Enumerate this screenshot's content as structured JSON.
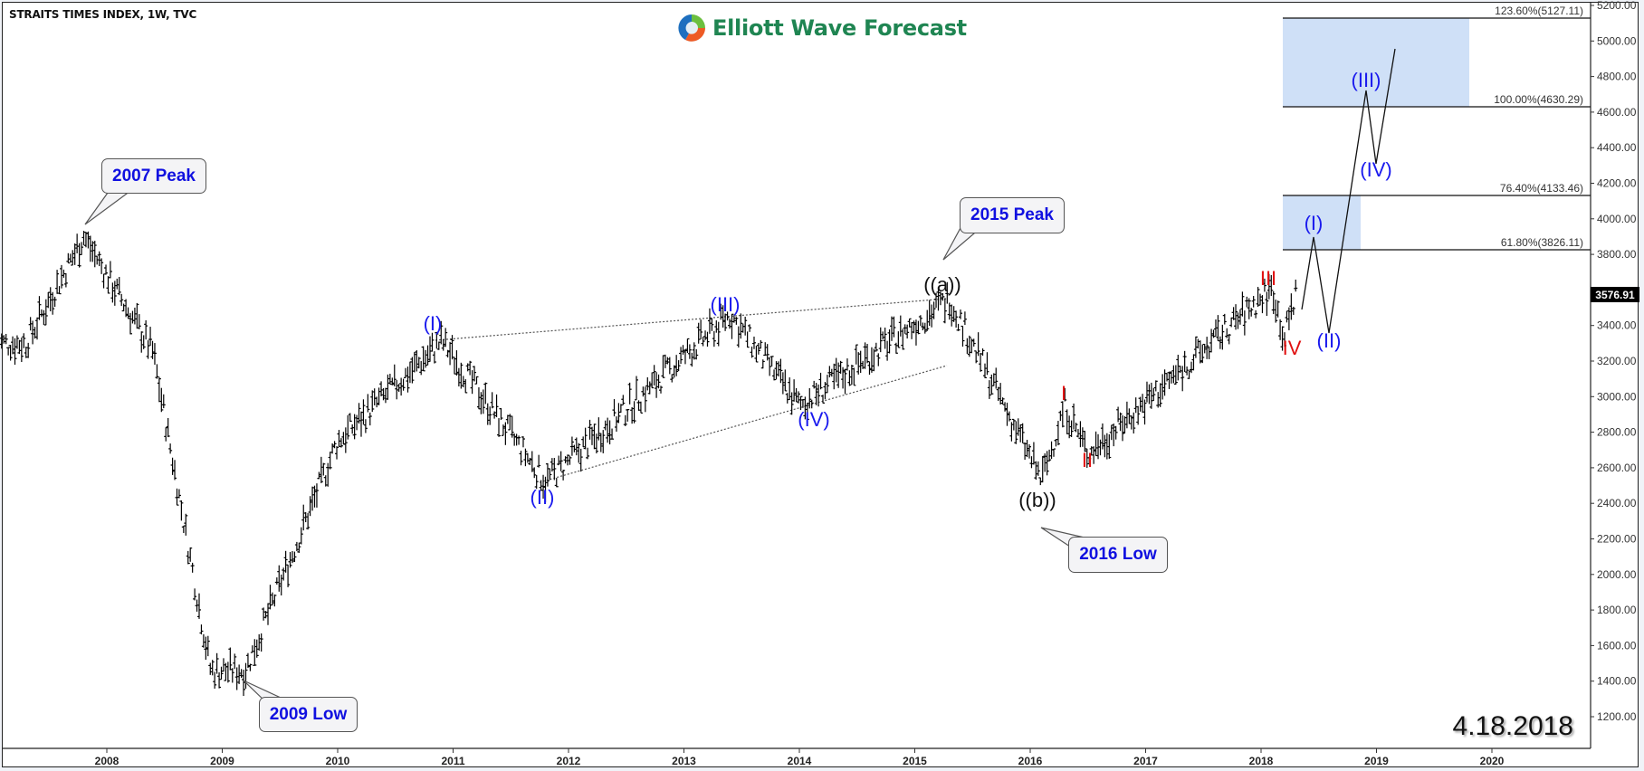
{
  "header": {
    "title": "STRAITS TIMES INDEX, 1W, TVC",
    "logo_text": "Elliott Wave Forecast"
  },
  "date_stamp": "4.18.2018",
  "last_price": "3576.91",
  "callouts": [
    {
      "label": "2007 Peak"
    },
    {
      "label": "2009 Low"
    },
    {
      "label": "2015 Peak"
    },
    {
      "label": "2016 Low"
    }
  ],
  "colors": {
    "wave_blue": "#1a1aee",
    "wave_red": "#e01010",
    "wave_black": "#111111",
    "fib_box": "#cfe0f7",
    "logo_green": "#1f8552",
    "callout_text": "#1010e0"
  },
  "chart_data": {
    "type": "line",
    "title": "STRAITS TIMES INDEX, 1W, TVC",
    "xlabel": "",
    "ylabel": "",
    "x_ticks": [
      "2008",
      "2009",
      "2010",
      "2011",
      "2012",
      "2013",
      "2014",
      "2015",
      "2016",
      "2017",
      "2018",
      "2019",
      "2020"
    ],
    "y_ticks": [
      5200,
      5000,
      4800,
      4600,
      4400,
      4200,
      4000,
      3800,
      3400,
      3200,
      3000,
      2800,
      2600,
      2400,
      2200,
      2000,
      1800,
      1600,
      1400,
      1200
    ],
    "ylim": [
      1050,
      5220
    ],
    "grid": false,
    "series": [
      {
        "name": "STI weekly (approx. key swing points)",
        "x": [
          "2007.3",
          "2007.8",
          "2008.4",
          "2008.9",
          "2009.2",
          "2010.0",
          "2010.9",
          "2011.8",
          "2013.4",
          "2014.0",
          "2015.3",
          "2016.1",
          "2016.3",
          "2016.5",
          "2018.1",
          "2018.2",
          "2018.3"
        ],
        "values": [
          3300,
          3900,
          3250,
          1460,
          1460,
          2750,
          3310,
          2520,
          3460,
          2950,
          3550,
          2530,
          2950,
          2680,
          3610,
          3330,
          3577
        ]
      },
      {
        "name": "Projected path",
        "x": [
          "2018.3",
          "2018.4",
          "2018.6",
          "2018.9",
          "2019.0",
          "2019.2"
        ],
        "values": [
          3500,
          3900,
          3380,
          4720,
          4320,
          4950
        ]
      }
    ],
    "fibonacci_levels": [
      {
        "label": "123.60%(5127.11)",
        "value": 5127.11
      },
      {
        "label": "100.00%(4630.29)",
        "value": 4630.29
      },
      {
        "label": "76.40%(4133.46)",
        "value": 4133.46
      },
      {
        "label": "61.80%(3826.11)",
        "value": 3826.11
      }
    ],
    "wave_labels": [
      {
        "text": "(I)",
        "color": "blue",
        "x": "2010.9",
        "value": 3310
      },
      {
        "text": "(II)",
        "color": "blue",
        "x": "2011.8",
        "value": 2520
      },
      {
        "text": "(III)",
        "color": "blue",
        "x": "2013.4",
        "value": 3460
      },
      {
        "text": "(IV)",
        "color": "blue",
        "x": "2014.0",
        "value": 2950
      },
      {
        "text": "((a))",
        "color": "black",
        "x": "2015.3",
        "value": 3550
      },
      {
        "text": "((b))",
        "color": "black",
        "x": "2016.1",
        "value": 2530
      },
      {
        "text": "I",
        "color": "red",
        "x": "2016.3",
        "value": 2950
      },
      {
        "text": "II",
        "color": "red",
        "x": "2016.5",
        "value": 2680
      },
      {
        "text": "III",
        "color": "red",
        "x": "2018.1",
        "value": 3610
      },
      {
        "text": "IV",
        "color": "red",
        "x": "2018.2",
        "value": 3330
      },
      {
        "text": "(I)",
        "color": "blue",
        "x": "2018.4",
        "value": 3900
      },
      {
        "text": "(II)",
        "color": "blue",
        "x": "2018.6",
        "value": 3380
      },
      {
        "text": "(III)",
        "color": "blue",
        "x": "2018.9",
        "value": 4720
      },
      {
        "text": "(IV)",
        "color": "blue",
        "x": "2019.0",
        "value": 4320
      }
    ],
    "annotations": [
      "2007 Peak",
      "2009 Low",
      "2015 Peak",
      "2016 Low",
      "4.18.2018"
    ],
    "last_price": 3576.91
  }
}
